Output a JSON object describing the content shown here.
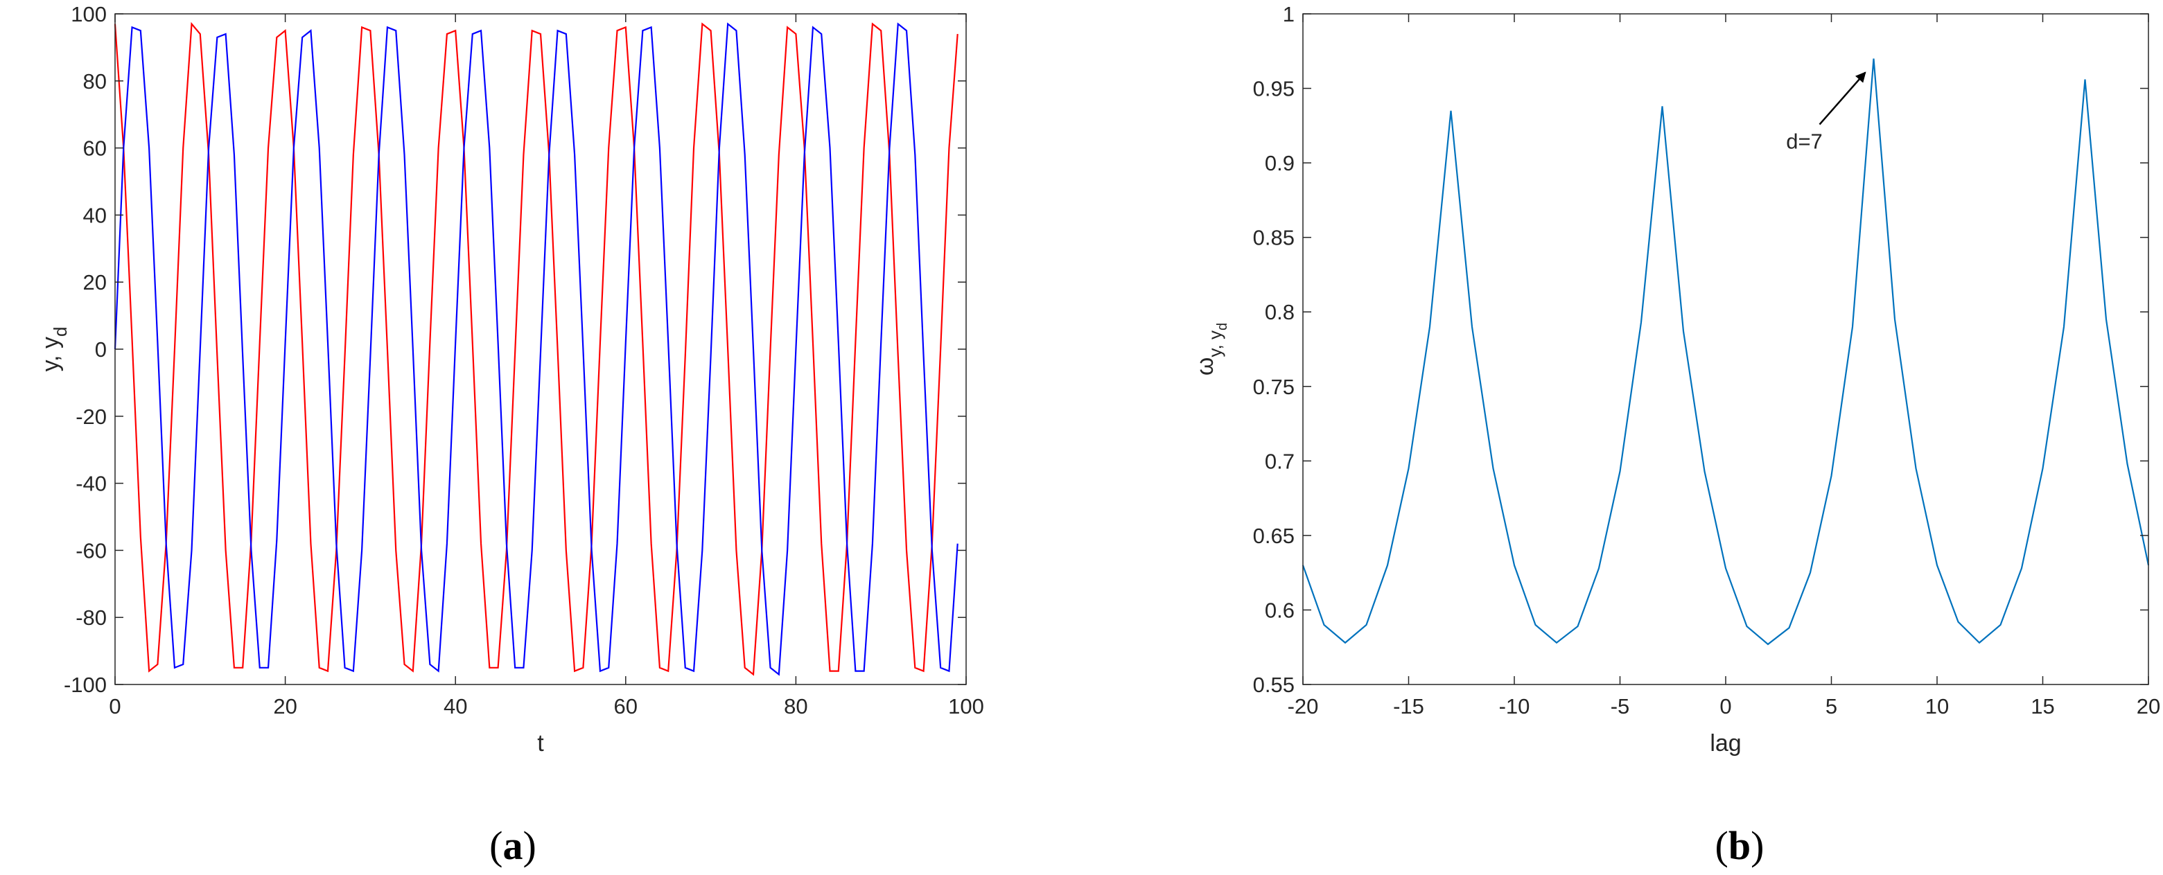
{
  "chart_data": [
    {
      "type": "line",
      "caption": {
        "open": "(",
        "letter": "a",
        "close": ")"
      },
      "xlabel": "t",
      "ylabel": {
        "text": "y, y",
        "sub": "d"
      },
      "xlim": [
        0,
        100
      ],
      "ylim": [
        -100,
        100
      ],
      "xticks": [
        0,
        20,
        40,
        60,
        80,
        100
      ],
      "yticks": [
        -100,
        -80,
        -60,
        -40,
        -20,
        0,
        20,
        40,
        60,
        80,
        100
      ],
      "x": [
        0,
        1,
        2,
        3,
        4,
        5,
        6,
        7,
        8,
        9,
        10,
        11,
        12,
        13,
        14,
        15,
        16,
        17,
        18,
        19,
        20,
        21,
        22,
        23,
        24,
        25,
        26,
        27,
        28,
        29,
        30,
        31,
        32,
        33,
        34,
        35,
        36,
        37,
        38,
        39,
        40,
        41,
        42,
        43,
        44,
        45,
        46,
        47,
        48,
        49,
        50,
        51,
        52,
        53,
        54,
        55,
        56,
        57,
        58,
        59,
        60,
        61,
        62,
        63,
        64,
        65,
        66,
        67,
        68,
        69,
        70,
        71,
        72,
        73,
        74,
        75,
        76,
        77,
        78,
        79,
        80,
        81,
        82,
        83,
        84,
        85,
        86,
        87,
        88,
        89,
        90,
        91,
        92,
        93,
        94,
        95,
        96,
        97,
        98,
        99
      ],
      "series": [
        {
          "color": "#ff0000",
          "values": [
            97,
            60,
            3,
            -56,
            -96,
            -94,
            -58,
            0,
            60,
            97,
            94,
            58,
            -2,
            -60,
            -95,
            -95,
            -57,
            2,
            60,
            93,
            95,
            60,
            2,
            -58,
            -95,
            -96,
            -60,
            -2,
            58,
            96,
            95,
            58,
            0,
            -60,
            -94,
            -96,
            -58,
            2,
            60,
            94,
            95,
            60,
            2,
            -58,
            -95,
            -95,
            -60,
            -1,
            58,
            95,
            94,
            58,
            0,
            -60,
            -96,
            -95,
            -58,
            2,
            60,
            95,
            96,
            60,
            2,
            -58,
            -95,
            -96,
            -60,
            -2,
            60,
            97,
            95,
            58,
            0,
            -60,
            -95,
            -97,
            -60,
            0,
            58,
            96,
            94,
            60,
            2,
            -58,
            -96,
            -96,
            -58,
            2,
            60,
            97,
            95,
            58,
            -2,
            -60,
            -95,
            -96,
            -58,
            0,
            60,
            94
          ]
        },
        {
          "color": "#0000ff",
          "values": [
            0,
            60,
            96,
            95,
            60,
            2,
            -58,
            -95,
            -94,
            -60,
            0,
            60,
            93,
            94,
            58,
            -2,
            -60,
            -95,
            -95,
            -57,
            2,
            60,
            93,
            95,
            60,
            2,
            -58,
            -95,
            -96,
            -60,
            -2,
            58,
            96,
            95,
            58,
            0,
            -60,
            -94,
            -96,
            -58,
            2,
            60,
            94,
            95,
            60,
            2,
            -58,
            -95,
            -95,
            -60,
            -1,
            58,
            95,
            94,
            58,
            0,
            -60,
            -96,
            -95,
            -58,
            2,
            60,
            95,
            96,
            60,
            2,
            -58,
            -95,
            -96,
            -60,
            -2,
            60,
            97,
            95,
            58,
            0,
            -60,
            -95,
            -97,
            -60,
            0,
            58,
            96,
            94,
            60,
            2,
            -58,
            -96,
            -96,
            -58,
            2,
            60,
            97,
            95,
            58,
            -2,
            -60,
            -95,
            -96,
            -58
          ]
        }
      ]
    },
    {
      "type": "line",
      "caption": {
        "open": "(",
        "letter": "b",
        "close": ")"
      },
      "xlabel": "lag",
      "ylabel": {
        "text": "ω",
        "sub": "y, y",
        "subsub": "d"
      },
      "xlim": [
        -20,
        20
      ],
      "ylim": [
        0.55,
        1
      ],
      "xticks": [
        -20,
        -15,
        -10,
        -5,
        0,
        5,
        10,
        15,
        20
      ],
      "yticks": [
        0.55,
        0.6,
        0.65,
        0.7,
        0.75,
        0.8,
        0.85,
        0.9,
        0.95,
        1
      ],
      "x": [
        -20,
        -19,
        -18,
        -17,
        -16,
        -15,
        -14,
        -13,
        -12,
        -11,
        -10,
        -9,
        -8,
        -7,
        -6,
        -5,
        -4,
        -3,
        -2,
        -1,
        0,
        1,
        2,
        3,
        4,
        5,
        6,
        7,
        8,
        9,
        10,
        11,
        12,
        13,
        14,
        15,
        16,
        17,
        18,
        19,
        20
      ],
      "series": [
        {
          "color": "#0072bd",
          "values": [
            0.63,
            0.59,
            0.578,
            0.59,
            0.63,
            0.695,
            0.79,
            0.935,
            0.79,
            0.695,
            0.63,
            0.59,
            0.578,
            0.589,
            0.628,
            0.693,
            0.793,
            0.938,
            0.787,
            0.693,
            0.628,
            0.589,
            0.577,
            0.588,
            0.625,
            0.69,
            0.79,
            0.97,
            0.795,
            0.695,
            0.63,
            0.592,
            0.578,
            0.59,
            0.628,
            0.695,
            0.79,
            0.956,
            0.795,
            0.698,
            0.63
          ]
        }
      ],
      "annotation": {
        "text": "d=7",
        "x": 7,
        "y": 0.97
      }
    }
  ]
}
